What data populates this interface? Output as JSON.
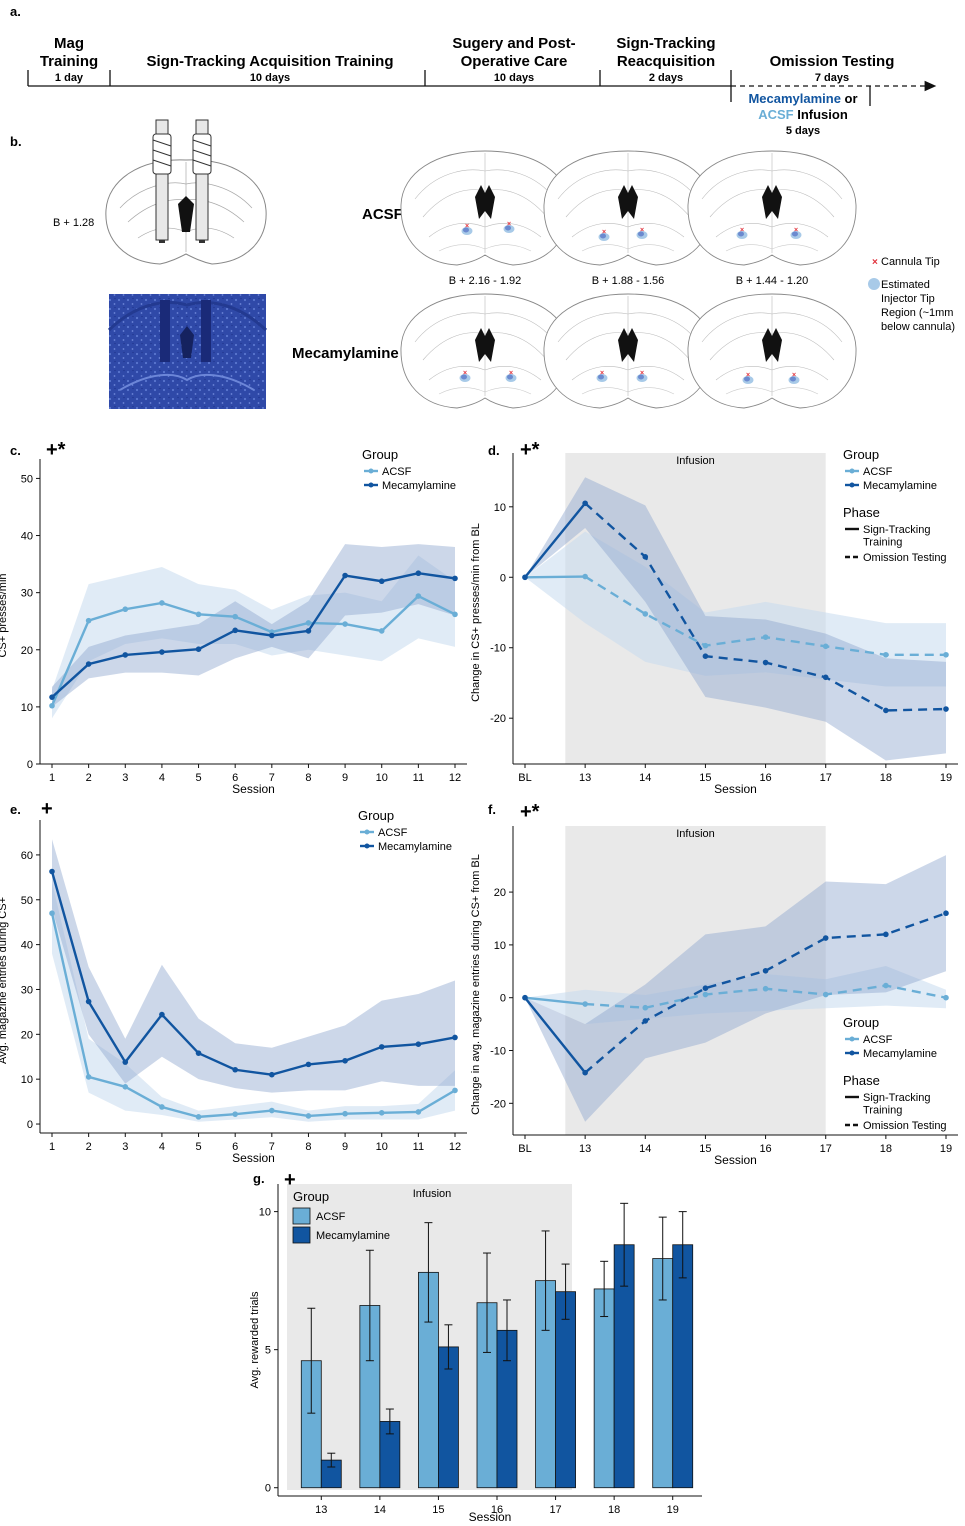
{
  "colors": {
    "acsf": "#6aaed6",
    "mec": "#1155a0",
    "acsf_band": "#c6dbef",
    "mec_band": "#8fa6cf",
    "infusion": "#e9e9e9",
    "cannula": "#e0303a",
    "stain": "#2f49a8"
  },
  "panel_labels": {
    "a": "a.",
    "b": "b.",
    "c": "c.",
    "d": "d.",
    "e": "e.",
    "f": "f.",
    "g": "g."
  },
  "timeline": {
    "stages": [
      {
        "title": "Mag\nTraining",
        "duration": "1 day"
      },
      {
        "title": "Sign-Tracking Acquisition Training",
        "duration": "10 days"
      },
      {
        "title": "Sugery and Post-\nOperative Care",
        "duration": "10 days"
      },
      {
        "title": "Sign-Tracking\nReacquisition",
        "duration": "2 days"
      },
      {
        "title": "Omission Testing",
        "duration": "7 days"
      }
    ],
    "infusion_mec": "Mecamylamine",
    "infusion_or": " or",
    "infusion_acsf": "ACSF",
    "infusion_word": " Infusion",
    "infusion_days": "5 days"
  },
  "histology": {
    "coord_main": "B + 1.28",
    "row_acsf": "ACSF",
    "row_mec": "Mecamylamine",
    "coords": [
      "B + 2.16 - 1.92",
      "B + 1.88 - 1.56",
      "B + 1.44 - 1.20"
    ],
    "legend_cannula": "Cannula Tip",
    "legend_injector": [
      "Estimated",
      "Injector Tip",
      "Region (~1mm",
      "below cannula)"
    ]
  },
  "chart_data": [
    {
      "id": "c",
      "type": "line",
      "sig": "+*",
      "xlabel": "Session",
      "ylabel": "CS+ presses/min",
      "x": [
        1,
        2,
        3,
        4,
        5,
        6,
        7,
        8,
        9,
        10,
        11,
        12
      ],
      "ylim": [
        0,
        52
      ],
      "yticks": [
        0,
        10,
        20,
        30,
        40,
        50
      ],
      "legend_title": "Group",
      "series": [
        {
          "name": "ACSF",
          "values": [
            10.2,
            25.1,
            27.1,
            28.2,
            26.2,
            25.8,
            23.1,
            24.7,
            24.5,
            23.3,
            29.4,
            26.2
          ],
          "band": [
            [
              8,
              13
            ],
            [
              18,
              31.5
            ],
            [
              21,
              33
            ],
            [
              22,
              34.5
            ],
            [
              21,
              31.5
            ],
            [
              21,
              30.5
            ],
            [
              19,
              27
            ],
            [
              20,
              29.5
            ],
            [
              19,
              30
            ],
            [
              18,
              28.5
            ],
            [
              22,
              36.5
            ],
            [
              20.5,
              32
            ]
          ]
        },
        {
          "name": "Mecamylamine",
          "values": [
            11.7,
            17.5,
            19.1,
            19.6,
            20.1,
            23.4,
            22.5,
            23.3,
            33.0,
            32.0,
            33.4,
            32.5
          ],
          "band": [
            [
              10,
              13.5
            ],
            [
              15,
              20.5
            ],
            [
              16,
              22.5
            ],
            [
              16,
              23.5
            ],
            [
              15.5,
              24.5
            ],
            [
              18.5,
              28.5
            ],
            [
              20.5,
              24.5
            ],
            [
              18.5,
              28.5
            ],
            [
              26,
              38.5
            ],
            [
              26.5,
              38
            ],
            [
              28,
              38.5
            ],
            [
              26,
              38
            ]
          ]
        }
      ]
    },
    {
      "id": "d",
      "type": "line",
      "sig": "+*",
      "xlabel": "Session",
      "ylabel": "Change in CS+ presses/min from BL",
      "x": [
        "BL",
        "13",
        "14",
        "15",
        "16",
        "17",
        "18",
        "19"
      ],
      "ylim": [
        -26.5,
        16.5
      ],
      "yticks": [
        -20,
        -10,
        0,
        10
      ],
      "infusion_label": "Infusion",
      "infusion_range": [
        "13",
        "17"
      ],
      "legend_title": "Group",
      "phase_title": "Phase",
      "phase_items": [
        "Sign-Tracking\nTraining",
        "Omission Testing"
      ],
      "series": [
        {
          "name": "ACSF",
          "values": [
            0,
            0.1,
            -5.2,
            -9.7,
            -8.5,
            -9.8,
            -11.0,
            -11.0
          ],
          "band": [
            [
              0,
              0
            ],
            [
              -6.5,
              6.5
            ],
            [
              -12,
              1.5
            ],
            [
              -14,
              -5
            ],
            [
              -13.5,
              -3.5
            ],
            [
              -14.5,
              -5
            ],
            [
              -15.5,
              -6.5
            ],
            [
              -15.5,
              -6.5
            ]
          ]
        },
        {
          "name": "Mecamylamine",
          "values": [
            0,
            10.5,
            2.9,
            -11.2,
            -12.1,
            -14.2,
            -18.9,
            -18.7
          ],
          "band": [
            [
              0,
              0
            ],
            [
              7,
              14.2
            ],
            [
              -3.5,
              10.2
            ],
            [
              -17,
              -5.5
            ],
            [
              -18.5,
              -6
            ],
            [
              -20.5,
              -8
            ],
            [
              -26,
              -11.5
            ],
            [
              -25,
              -12
            ]
          ]
        }
      ]
    },
    {
      "id": "e",
      "type": "line",
      "sig": "+",
      "xlabel": "Session",
      "ylabel": "Avg. magazine entries during CS+",
      "x": [
        1,
        2,
        3,
        4,
        5,
        6,
        7,
        8,
        9,
        10,
        11,
        12
      ],
      "ylim": [
        -2,
        66
      ],
      "yticks": [
        0,
        10,
        20,
        30,
        40,
        50,
        60
      ],
      "legend_title": "Group",
      "series": [
        {
          "name": "ACSF",
          "values": [
            47.0,
            10.5,
            8.3,
            3.8,
            1.6,
            2.2,
            3.0,
            1.8,
            2.3,
            2.5,
            2.7,
            7.5
          ],
          "band": [
            [
              38,
              54
            ],
            [
              7,
              19
            ],
            [
              3,
              13.5
            ],
            [
              2,
              6
            ],
            [
              0.5,
              3
            ],
            [
              1,
              4
            ],
            [
              1.5,
              5
            ],
            [
              0.5,
              3
            ],
            [
              1,
              4
            ],
            [
              1,
              4
            ],
            [
              1,
              4.5
            ],
            [
              3,
              12
            ]
          ]
        },
        {
          "name": "Mecamylamine",
          "values": [
            56.3,
            27.3,
            13.8,
            24.4,
            15.8,
            12.1,
            11.0,
            13.3,
            14.1,
            17.2,
            17.8,
            19.3
          ],
          "band": [
            [
              48,
              63.5
            ],
            [
              20,
              35
            ],
            [
              9,
              19
            ],
            [
              15,
              35.5
            ],
            [
              10,
              23.5
            ],
            [
              8,
              18
            ],
            [
              7,
              17
            ],
            [
              7.5,
              19.5
            ],
            [
              7.5,
              22
            ],
            [
              9.5,
              27.5
            ],
            [
              8.5,
              29
            ],
            [
              8.5,
              32
            ]
          ]
        }
      ]
    },
    {
      "id": "f",
      "type": "line",
      "sig": "+*",
      "xlabel": "Session",
      "ylabel": "Change in avg. magazine entries during CS+ from BL",
      "x": [
        "BL",
        "13",
        "14",
        "15",
        "16",
        "17",
        "18",
        "19"
      ],
      "ylim": [
        -26,
        31
      ],
      "yticks": [
        -20,
        -10,
        0,
        10,
        20
      ],
      "infusion_label": "Infusion",
      "infusion_range": [
        "13",
        "17"
      ],
      "legend_title": "Group",
      "phase_title": "Phase",
      "phase_items": [
        "Sign-Tracking\nTraining",
        "Omission Testing"
      ],
      "series": [
        {
          "name": "ACSF",
          "values": [
            0,
            -1.2,
            -1.9,
            0.6,
            1.7,
            0.6,
            2.3,
            0.0
          ],
          "band": [
            [
              0,
              0
            ],
            [
              -5,
              1.5
            ],
            [
              -4,
              0.5
            ],
            [
              -3,
              2.5
            ],
            [
              -2.5,
              4.5
            ],
            [
              -2,
              3.5
            ],
            [
              -1.5,
              6
            ],
            [
              -2,
              1.5
            ]
          ]
        },
        {
          "name": "Mecamylamine",
          "values": [
            0,
            -14.2,
            -4.4,
            1.8,
            5.1,
            11.3,
            12.0,
            16.0
          ],
          "band": [
            [
              0,
              0
            ],
            [
              -23.5,
              -5
            ],
            [
              -11.5,
              2.5
            ],
            [
              -8.5,
              12
            ],
            [
              -3,
              13.5
            ],
            [
              0.5,
              22
            ],
            [
              1,
              21.5
            ],
            [
              5,
              27
            ]
          ]
        }
      ]
    },
    {
      "id": "g",
      "type": "bar",
      "sig": "+",
      "xlabel": "Session",
      "ylabel": "Avg. rewarded trials",
      "categories": [
        "13",
        "14",
        "15",
        "16",
        "17",
        "18",
        "19"
      ],
      "ylim": [
        -0.3,
        11
      ],
      "yticks": [
        0,
        5,
        10
      ],
      "infusion_label": "Infusion",
      "legend_title": "Group",
      "series": [
        {
          "name": "ACSF",
          "values": [
            4.6,
            6.6,
            7.8,
            6.7,
            7.5,
            7.2,
            8.3
          ],
          "err": [
            1.9,
            2.0,
            1.8,
            1.8,
            1.8,
            1.0,
            1.5
          ]
        },
        {
          "name": "Mecamylamine",
          "values": [
            1.0,
            2.4,
            5.1,
            5.7,
            7.1,
            8.8,
            8.8
          ],
          "err": [
            0.25,
            0.45,
            0.8,
            1.1,
            1.0,
            1.5,
            1.2
          ]
        }
      ]
    }
  ]
}
